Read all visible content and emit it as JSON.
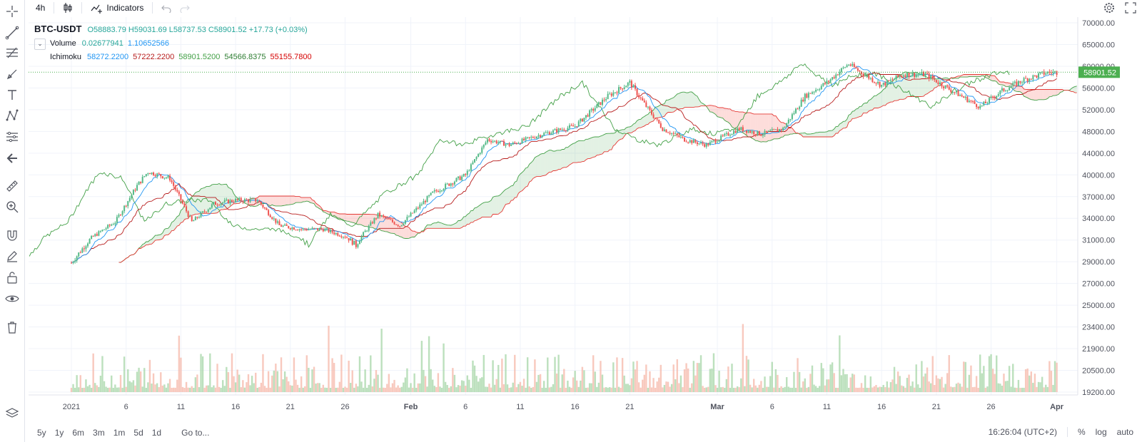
{
  "toolbar": {
    "interval": "4h",
    "indicators_label": "Indicators"
  },
  "legend": {
    "symbol": "BTC-USDT",
    "ohlc": "O58883.79 H59031.69 L58737.53 C58901.52 +17.73 (+0.03%)",
    "volume_label": "Volume",
    "volume_v1": "0.02677941",
    "volume_v2": "1.10652566",
    "ichimoku_label": "Ichimoku",
    "ichimoku_v1": "58272.2200",
    "ichimoku_v2": "57222.2200",
    "ichimoku_v3": "58901.5200",
    "ichimoku_v4": "54566.8375",
    "ichimoku_v5": "55155.7800"
  },
  "colors": {
    "up": "#26a69a",
    "up_candle": "#53b987",
    "down": "#ef5350",
    "tenkan": "#2196f3",
    "kijun": "#b71c1c",
    "chikou": "#43a047",
    "span_a": "#43a047",
    "span_b": "#e53935",
    "price_badge": "#4caf50"
  },
  "chart_data": {
    "type": "line",
    "title": "BTC-USDT",
    "price_scale_ticks": [
      "70000.00",
      "65000.00",
      "60000.00",
      "56000.00",
      "52000.00",
      "48000.00",
      "44000.00",
      "40000.00",
      "37000.00",
      "34000.00",
      "31000.00",
      "29000.00",
      "27000.00",
      "25000.00",
      "23400.00",
      "21900.00",
      "20500.00",
      "19200.00"
    ],
    "current_price": "58901.52",
    "x_tick_labels": [
      "2021",
      "6",
      "11",
      "16",
      "21",
      "26",
      "Feb",
      "6",
      "11",
      "16",
      "21",
      "Mar",
      "6",
      "11",
      "16",
      "21",
      "26",
      "Apr"
    ],
    "x_tick_dates": [
      "2021-01-01",
      "2021-01-06",
      "2021-01-11",
      "2021-01-16",
      "2021-01-21",
      "2021-01-26",
      "2021-02-01",
      "2021-02-06",
      "2021-02-11",
      "2021-02-16",
      "2021-02-21",
      "2021-03-01",
      "2021-03-06",
      "2021-03-11",
      "2021-03-16",
      "2021-03-21",
      "2021-03-26",
      "2021-04-01"
    ],
    "series": [
      {
        "name": "BTC-USDT",
        "x": [
          "2021-01-01",
          "2021-01-03",
          "2021-01-05",
          "2021-01-07",
          "2021-01-08",
          "2021-01-10",
          "2021-01-12",
          "2021-01-14",
          "2021-01-16",
          "2021-01-18",
          "2021-01-20",
          "2021-01-22",
          "2021-01-24",
          "2021-01-26",
          "2021-01-27",
          "2021-01-29",
          "2021-01-31",
          "2021-02-03",
          "2021-02-06",
          "2021-02-08",
          "2021-02-10",
          "2021-02-13",
          "2021-02-16",
          "2021-02-19",
          "2021-02-21",
          "2021-02-22",
          "2021-02-24",
          "2021-02-26",
          "2021-02-28",
          "2021-03-03",
          "2021-03-05",
          "2021-03-07",
          "2021-03-09",
          "2021-03-11",
          "2021-03-13",
          "2021-03-14",
          "2021-03-16",
          "2021-03-18",
          "2021-03-20",
          "2021-03-22",
          "2021-03-25",
          "2021-03-27",
          "2021-03-29",
          "2021-03-31",
          "2021-04-01"
        ],
        "values": [
          28900,
          31500,
          33500,
          38500,
          40500,
          39500,
          33500,
          36000,
          36500,
          36500,
          33000,
          32500,
          32500,
          31500,
          30500,
          34500,
          33000,
          37500,
          40000,
          46500,
          45500,
          47500,
          49000,
          54500,
          57000,
          54000,
          48500,
          46500,
          45500,
          48500,
          47500,
          48500,
          54500,
          57000,
          60500,
          59000,
          56500,
          58500,
          58500,
          56000,
          52500,
          55500,
          57500,
          58800,
          58900
        ]
      }
    ]
  },
  "bottombar": {
    "ranges": [
      "5y",
      "1y",
      "6m",
      "3m",
      "1m",
      "5d",
      "1d"
    ],
    "goto": "Go to...",
    "clock": "16:26:04 (UTC+2)",
    "pct": "%",
    "log": "log",
    "auto": "auto"
  }
}
